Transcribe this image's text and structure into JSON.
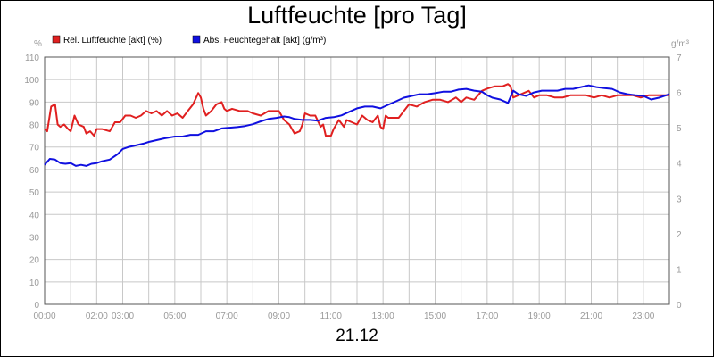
{
  "chart_data": {
    "type": "line",
    "title": "Luftfeuchte [pro Tag]",
    "date_label": "21.12",
    "y_left": {
      "unit_label": "%",
      "range": [
        0,
        110
      ],
      "ticks": [
        0,
        10,
        20,
        30,
        40,
        50,
        60,
        70,
        80,
        90,
        100,
        110
      ]
    },
    "y_right": {
      "unit_label": "g/m³",
      "range": [
        0,
        7
      ],
      "ticks": [
        0,
        1,
        2,
        3,
        4,
        5,
        6,
        7
      ]
    },
    "x_ticks": [
      "00:00",
      "02:00",
      "03:00",
      "05:00",
      "07:00",
      "09:00",
      "11:00",
      "13:00",
      "15:00",
      "17:00",
      "19:00",
      "21:00",
      "23:00"
    ],
    "x_tick_hours": [
      0,
      2,
      3,
      5,
      7,
      9,
      11,
      13,
      15,
      17,
      19,
      21,
      23
    ],
    "grid": true,
    "legend_position": "top-left",
    "series": [
      {
        "name": "Rel. Luftfeuchte [akt] (%)",
        "color": "#e02020",
        "axis": "left",
        "x_hours": [
          0,
          0.1,
          0.25,
          0.4,
          0.5,
          0.6,
          0.75,
          0.9,
          1.0,
          1.15,
          1.3,
          1.5,
          1.6,
          1.75,
          1.9,
          2.0,
          2.2,
          2.5,
          2.7,
          2.9,
          3.1,
          3.3,
          3.5,
          3.7,
          3.9,
          4.1,
          4.3,
          4.5,
          4.7,
          4.9,
          5.1,
          5.3,
          5.5,
          5.7,
          5.9,
          6.0,
          6.1,
          6.2,
          6.4,
          6.6,
          6.8,
          6.9,
          7.0,
          7.2,
          7.5,
          7.8,
          8.0,
          8.3,
          8.6,
          8.8,
          9.0,
          9.2,
          9.4,
          9.6,
          9.8,
          9.9,
          10.0,
          10.2,
          10.4,
          10.6,
          10.7,
          10.8,
          11.0,
          11.1,
          11.3,
          11.5,
          11.6,
          11.8,
          12.0,
          12.2,
          12.4,
          12.6,
          12.8,
          12.9,
          13.0,
          13.1,
          13.2,
          13.4,
          13.6,
          13.8,
          14.0,
          14.3,
          14.6,
          14.9,
          15.2,
          15.5,
          15.8,
          16.0,
          16.2,
          16.5,
          16.8,
          17.0,
          17.3,
          17.6,
          17.8,
          17.9,
          18.0,
          18.2,
          18.4,
          18.6,
          18.8,
          19.0,
          19.3,
          19.6,
          19.9,
          20.2,
          20.5,
          20.8,
          21.1,
          21.4,
          21.7,
          22.0,
          22.3,
          22.6,
          22.9,
          23.2,
          23.5,
          23.8,
          24.0
        ],
        "values": [
          78,
          77,
          88,
          89,
          80,
          79,
          80,
          78,
          77,
          84,
          80,
          79,
          76,
          77,
          75,
          78,
          78,
          77,
          81,
          81,
          84,
          84,
          83,
          84,
          86,
          85,
          86,
          84,
          86,
          84,
          85,
          83,
          86,
          89,
          94,
          92,
          87,
          84,
          86,
          89,
          90,
          87,
          86,
          87,
          86,
          86,
          85,
          84,
          86,
          86,
          86,
          82,
          80,
          76,
          77,
          80,
          85,
          84,
          84,
          79,
          80,
          75,
          75,
          78,
          82,
          79,
          82,
          81,
          80,
          84,
          82,
          81,
          84,
          79,
          78,
          84,
          83,
          83,
          83,
          86,
          89,
          88,
          90,
          91,
          91,
          90,
          92,
          90,
          92,
          91,
          95,
          96,
          97,
          97,
          98,
          97,
          92,
          93,
          94,
          95,
          92,
          93,
          93,
          92,
          92,
          93,
          93,
          93,
          92,
          93,
          92,
          93,
          93,
          93,
          92,
          93,
          93,
          93,
          93
        ],
        "legend_text": "Rel. Luftfeuchte [akt] (%)"
      },
      {
        "name": "Abs. Feuchtegehalt [akt] (g/m³)",
        "color": "#1010e0",
        "axis": "right",
        "x_hours": [
          0,
          0.2,
          0.4,
          0.6,
          0.8,
          1.0,
          1.2,
          1.4,
          1.6,
          1.8,
          2.0,
          2.2,
          2.5,
          2.8,
          3.0,
          3.2,
          3.5,
          3.8,
          4.0,
          4.3,
          4.6,
          5.0,
          5.3,
          5.6,
          5.9,
          6.2,
          6.5,
          6.8,
          7.1,
          7.4,
          7.7,
          8.0,
          8.3,
          8.6,
          8.9,
          9.2,
          9.4,
          9.6,
          9.9,
          10.2,
          10.5,
          10.8,
          11.1,
          11.4,
          11.7,
          12.0,
          12.3,
          12.6,
          12.9,
          13.2,
          13.5,
          13.8,
          14.1,
          14.4,
          14.7,
          15.0,
          15.3,
          15.6,
          15.9,
          16.2,
          16.5,
          16.8,
          17.0,
          17.2,
          17.5,
          17.8,
          18.0,
          18.2,
          18.5,
          18.8,
          19.1,
          19.4,
          19.7,
          20.0,
          20.3,
          20.6,
          20.9,
          21.2,
          21.5,
          21.8,
          22.1,
          22.4,
          22.7,
          23.0,
          23.3,
          23.6,
          24.0
        ],
        "values": [
          3.95,
          4.12,
          4.1,
          4.0,
          3.98,
          4.0,
          3.92,
          3.95,
          3.92,
          3.98,
          4.0,
          4.05,
          4.1,
          4.25,
          4.4,
          4.45,
          4.5,
          4.55,
          4.6,
          4.65,
          4.7,
          4.75,
          4.75,
          4.8,
          4.8,
          4.9,
          4.9,
          4.98,
          5.0,
          5.02,
          5.05,
          5.1,
          5.18,
          5.25,
          5.28,
          5.32,
          5.3,
          5.25,
          5.22,
          5.22,
          5.2,
          5.28,
          5.3,
          5.35,
          5.45,
          5.55,
          5.6,
          5.6,
          5.55,
          5.65,
          5.75,
          5.85,
          5.9,
          5.95,
          5.95,
          5.98,
          6.02,
          6.02,
          6.08,
          6.1,
          6.05,
          6.02,
          5.92,
          5.85,
          5.8,
          5.7,
          6.05,
          5.95,
          5.9,
          6.0,
          6.05,
          6.05,
          6.05,
          6.1,
          6.1,
          6.15,
          6.2,
          6.15,
          6.12,
          6.1,
          6.0,
          5.95,
          5.92,
          5.9,
          5.8,
          5.85,
          5.95
        ]
      }
    ]
  }
}
